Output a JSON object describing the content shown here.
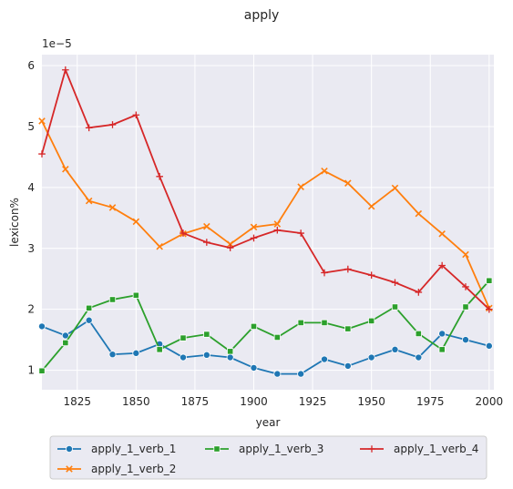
{
  "chart_data": {
    "type": "line",
    "title": "apply",
    "xlabel": "year",
    "ylabel": "lexicon%",
    "y_scale_label": "1e−5",
    "xlim": [
      1810,
      2002
    ],
    "ylim": [
      0.68,
      6.18
    ],
    "x_ticks": [
      "1825",
      "1850",
      "1875",
      "1900",
      "1925",
      "1950",
      "1975",
      "2000"
    ],
    "y_ticks": [
      "1",
      "2",
      "3",
      "4",
      "5",
      "6"
    ],
    "grid": true,
    "legend_placement": "bottom",
    "x": [
      1810,
      1820,
      1830,
      1840,
      1850,
      1860,
      1870,
      1880,
      1890,
      1900,
      1910,
      1920,
      1930,
      1940,
      1950,
      1960,
      1970,
      1980,
      1990,
      2000
    ],
    "series": [
      {
        "name": "apply_1_verb_1",
        "color": "#1f77b4",
        "marker": "circle",
        "values": [
          1.72,
          1.57,
          1.82,
          1.26,
          1.28,
          1.43,
          1.21,
          1.25,
          1.21,
          1.04,
          0.94,
          0.94,
          1.18,
          1.07,
          1.21,
          1.34,
          1.21,
          1.6,
          1.5,
          1.4
        ]
      },
      {
        "name": "apply_1_verb_2",
        "color": "#ff7f0e",
        "marker": "x",
        "values": [
          5.09,
          4.3,
          3.78,
          3.67,
          3.44,
          3.03,
          3.24,
          3.36,
          3.07,
          3.35,
          3.4,
          4.01,
          4.27,
          4.07,
          3.69,
          3.99,
          3.57,
          3.24,
          2.9,
          2.02
        ]
      },
      {
        "name": "apply_1_verb_3",
        "color": "#2ca02c",
        "marker": "square",
        "values": [
          0.99,
          1.45,
          2.02,
          2.16,
          2.23,
          1.34,
          1.53,
          1.59,
          1.31,
          1.72,
          1.54,
          1.78,
          1.78,
          1.68,
          1.81,
          2.04,
          1.6,
          1.34,
          2.04,
          2.47
        ]
      },
      {
        "name": "apply_1_verb_4",
        "color": "#d62728",
        "marker": "plus",
        "values": [
          4.55,
          5.93,
          4.98,
          5.03,
          5.19,
          4.18,
          3.25,
          3.1,
          3.01,
          3.17,
          3.3,
          3.25,
          2.6,
          2.66,
          2.56,
          2.44,
          2.28,
          2.72,
          2.37,
          2.0
        ]
      }
    ]
  }
}
